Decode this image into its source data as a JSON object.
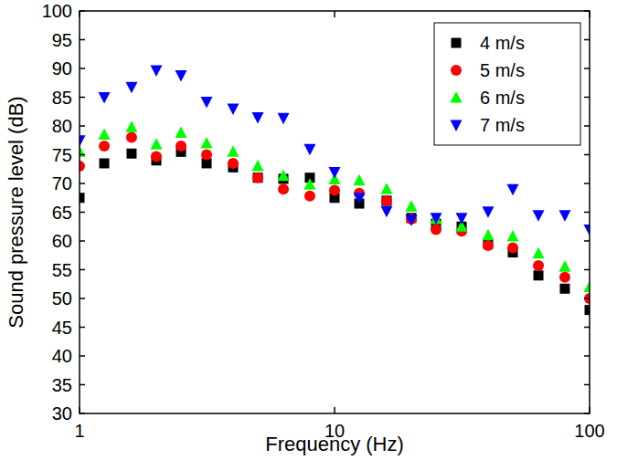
{
  "chart_data": {
    "type": "scatter",
    "x_label": "Frequency (Hz)",
    "y_label": "Sound pressure level (dB)",
    "log": "x",
    "legend": "top-right",
    "x": [
      1,
      1.25,
      1.6,
      2,
      2.5,
      3.15,
      4,
      5,
      6.3,
      8,
      10,
      12.5,
      16,
      20,
      25,
      31.5,
      40,
      50,
      63,
      80,
      100
    ],
    "xlim": [
      1,
      100
    ],
    "xticks": [
      1,
      10,
      100
    ],
    "ylim": [
      30,
      100
    ],
    "yticks": [
      30,
      35,
      40,
      45,
      50,
      55,
      60,
      65,
      70,
      75,
      80,
      85,
      90,
      95,
      100
    ],
    "series": [
      {
        "name": "4 m/s",
        "color": "#000000",
        "marker": "square",
        "values": [
          67.5,
          73.5,
          75.2,
          74,
          75.5,
          73.5,
          72.8,
          71,
          70.8,
          71,
          67.5,
          66.5,
          67,
          64,
          63,
          62.5,
          59.5,
          58,
          54,
          51.7,
          48
        ]
      },
      {
        "name": "5 m/s",
        "color": "#ff0000",
        "marker": "circle",
        "values": [
          73,
          76.5,
          78,
          74.7,
          76.5,
          75,
          73.5,
          71,
          69,
          67.8,
          68.8,
          68.3,
          67,
          63.8,
          62,
          61.7,
          59.2,
          58.8,
          55.7,
          53.7,
          50
        ]
      },
      {
        "name": "6 m/s",
        "color": "#00ff00",
        "marker": "triangle-up",
        "values": [
          75.5,
          78.5,
          79.8,
          76.8,
          78.8,
          77,
          75.5,
          73,
          71.3,
          69.8,
          70.7,
          70.5,
          69,
          66,
          63.8,
          62.5,
          61,
          60.8,
          57.8,
          55.5,
          52
        ]
      },
      {
        "name": "7 m/s",
        "color": "#0000ff",
        "marker": "triangle-down",
        "values": [
          77.5,
          85,
          86.8,
          89.7,
          88.8,
          84.2,
          83,
          81.5,
          81.4,
          76,
          72,
          67.5,
          65.2,
          63.7,
          64,
          64,
          65.1,
          69,
          64.5,
          64.5,
          62
        ]
      }
    ]
  }
}
